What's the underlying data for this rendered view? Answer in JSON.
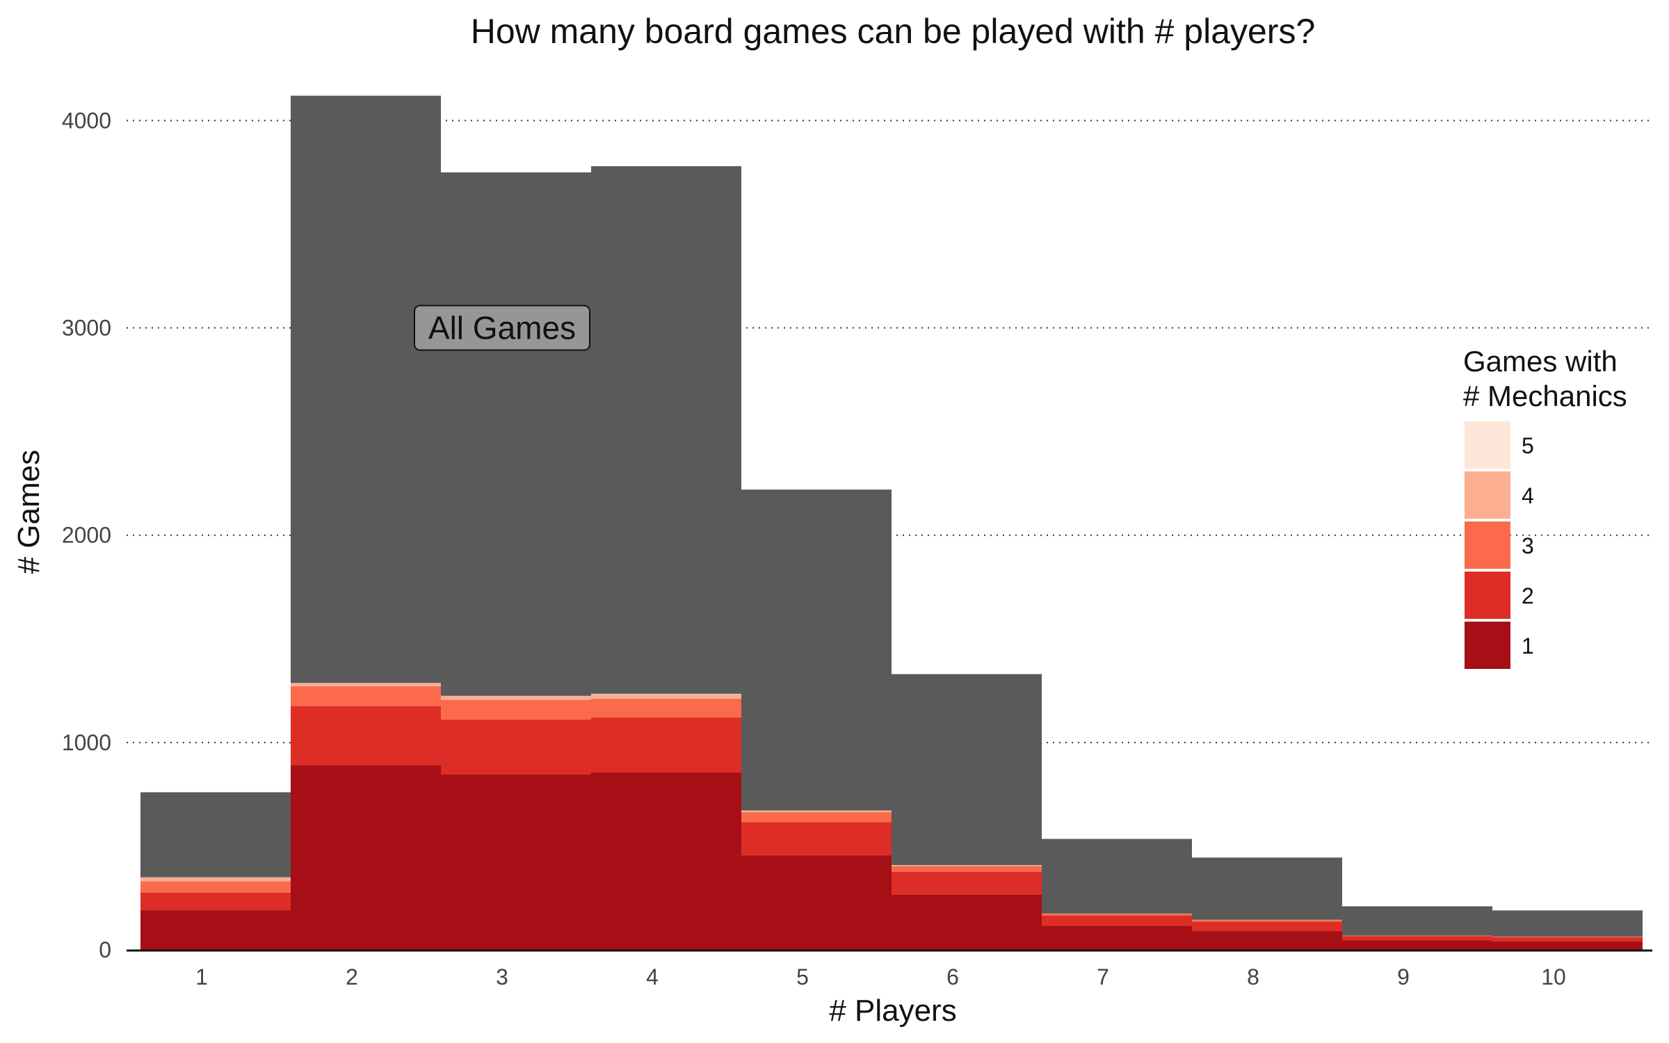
{
  "chart_data": {
    "type": "bar",
    "stacked": true,
    "title": "How many board games can be played with # players?",
    "xlabel": "# Players",
    "ylabel": "# Games",
    "categories": [
      "1",
      "2",
      "3",
      "4",
      "5",
      "6",
      "7",
      "8",
      "9",
      "10"
    ],
    "ylim": [
      0,
      4200
    ],
    "yticks": [
      0,
      1000,
      2000,
      3000,
      4000
    ],
    "grid": "horizontal-dotted",
    "all_games": {
      "color": "#5a5a5a",
      "values": [
        760,
        4120,
        3750,
        3780,
        2220,
        1330,
        535,
        445,
        210,
        190
      ]
    },
    "series": [
      {
        "name": "1",
        "color": "#a50f15",
        "values": [
          190,
          890,
          845,
          855,
          455,
          265,
          115,
          90,
          45,
          40
        ]
      },
      {
        "name": "2",
        "color": "#de2d26",
        "values": [
          85,
          285,
          265,
          265,
          160,
          110,
          50,
          45,
          20,
          20
        ]
      },
      {
        "name": "3",
        "color": "#fb6a4a",
        "values": [
          55,
          95,
          95,
          90,
          48,
          28,
          8,
          8,
          3,
          3
        ]
      },
      {
        "name": "4",
        "color": "#fcae91",
        "values": [
          18,
          15,
          18,
          22,
          8,
          5,
          2,
          2,
          1,
          1
        ]
      },
      {
        "name": "5",
        "color": "#fee5d9",
        "values": [
          2,
          2,
          2,
          3,
          1,
          1,
          0,
          0,
          0,
          0
        ]
      }
    ],
    "legend": {
      "title_line1": "Games with",
      "title_line2": "# Mechanics",
      "placement": "right"
    },
    "annotation": {
      "text": "All Games",
      "x_category": "3",
      "y": 3000
    }
  }
}
